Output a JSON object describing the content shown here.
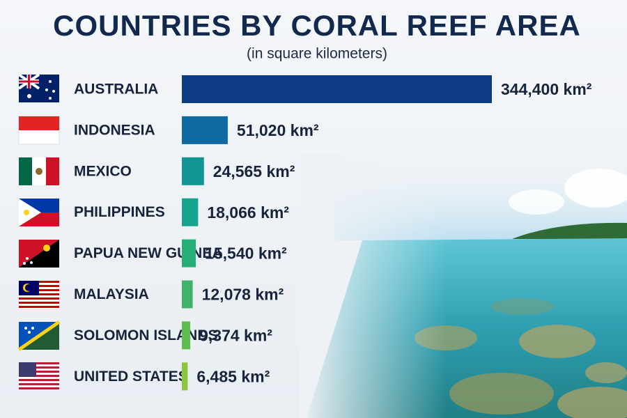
{
  "chart_data": {
    "type": "bar",
    "orientation": "horizontal",
    "title": "COUNTRIES BY CORAL REEF AREA",
    "subtitle": "(in square kilometers)",
    "categories": [
      "AUSTRALIA",
      "INDONESIA",
      "MEXICO",
      "PHILIPPINES",
      "PAPUA NEW GUINEA",
      "MALAYSIA",
      "SOLOMON ISLANDS",
      "UNITED STATES"
    ],
    "values": [
      344400,
      51020,
      24565,
      18066,
      15540,
      12078,
      9374,
      6485
    ],
    "value_labels": [
      "344,400 km²",
      "51,020 km²",
      "24,565 km²",
      "18,066 km²",
      "15,540 km²",
      "12,078 km²",
      "9,374 km²",
      "6,485 km²"
    ],
    "colors": [
      "#0d3a85",
      "#0e6aa0",
      "#119494",
      "#15a38e",
      "#27ad76",
      "#3fb466",
      "#5dbd4f",
      "#8cc63f"
    ]
  }
}
